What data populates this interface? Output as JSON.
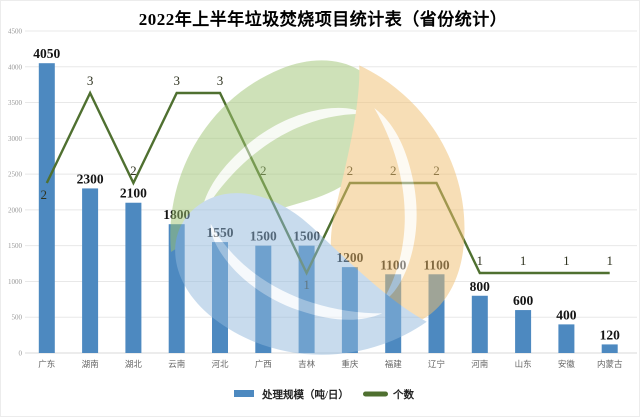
{
  "title": "2022年上半年垃圾焚烧项目统计表（省份统计）",
  "colors": {
    "bar": "#4d89c0",
    "line": "#4f7030",
    "grid": "#e8e8e8",
    "axis_line": "#d9d9d9",
    "y_tick_text": "#999999",
    "x_tick_text": "#666666",
    "bar_label": "#141414",
    "line_label": "#2f3320",
    "legend_text": "#222222",
    "title_text": "#000000"
  },
  "watermark": {
    "icon": "eco-leaves-logo-watermark",
    "leaf_colors": {
      "green": "#9fc573",
      "orange": "#f0bf6f",
      "blue": "#92b9dd"
    }
  },
  "chart_data": {
    "type": "bar",
    "combo": "bar+line",
    "title": "2022年上半年垃圾焚烧项目统计表（省份统计）",
    "categories": [
      "广东",
      "湖南",
      "湖北",
      "云南",
      "河北",
      "广西",
      "吉林",
      "重庆",
      "福建",
      "辽宁",
      "河南",
      "山东",
      "安徽",
      "内蒙古"
    ],
    "series": [
      {
        "name": "处理规模（吨/日）",
        "type": "bar",
        "axis": "left",
        "values": [
          4050,
          2300,
          2100,
          1800,
          1550,
          1500,
          1500,
          1200,
          1100,
          1100,
          800,
          600,
          400,
          120
        ]
      },
      {
        "name": "个数",
        "type": "line",
        "axis": "right-hidden",
        "values": [
          2,
          3,
          2,
          3,
          3,
          2,
          1,
          2,
          2,
          2,
          1,
          1,
          1,
          1
        ]
      }
    ],
    "y_axis": {
      "min": 0,
      "max": 4500,
      "step": 500,
      "ticks": [
        4500,
        4000,
        3500,
        3000,
        2500,
        2000,
        1500,
        1000,
        500,
        0
      ]
    },
    "y2_axis": {
      "min": 0,
      "max": 4,
      "visible": false
    },
    "data_labels": true,
    "line_label_placement": [
      "below",
      "above",
      "above",
      "above",
      "above",
      "above",
      "below",
      "above",
      "above",
      "above",
      "above",
      "above",
      "above",
      "above"
    ],
    "grid": true,
    "legend_position": "bottom"
  },
  "legend": {
    "items": [
      {
        "label": "处理规模（吨/日）",
        "swatch": "bar"
      },
      {
        "label": "个数",
        "swatch": "line"
      }
    ]
  }
}
